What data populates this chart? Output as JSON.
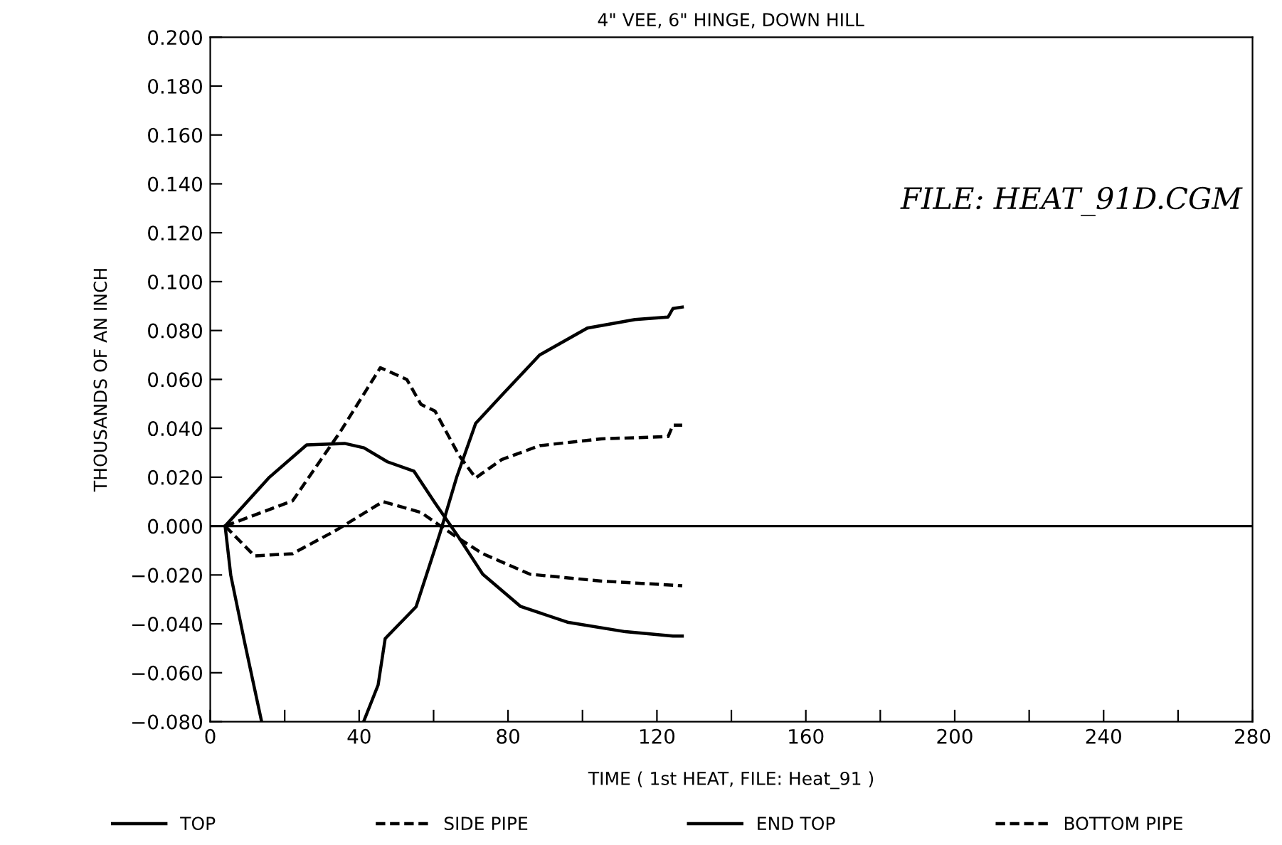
{
  "chart_data": {
    "type": "line",
    "title": "4\" VEE, 6\" HINGE, DOWN HILL",
    "xlabel": "TIME ( 1st HEAT, FILE: Heat_91 )",
    "ylabel": "THOUSANDS OF AN INCH",
    "annotations": [
      "FILE: HEAT_91D.CGM"
    ],
    "xlim": [
      0,
      280
    ],
    "xticks": [
      0,
      {
        "value": 20,
        "label": null
      },
      40,
      {
        "value": 60,
        "label": null
      },
      80,
      {
        "value": 100,
        "label": null
      },
      120,
      {
        "value": 140,
        "label": null
      },
      160,
      {
        "value": 180,
        "label": null
      },
      200,
      {
        "value": 220,
        "label": null
      },
      240,
      {
        "value": 260,
        "label": null
      },
      280
    ],
    "ylim": [
      -0.08,
      0.2
    ],
    "yticks": [
      {
        "value": -0.08,
        "label": "−0.080"
      },
      {
        "value": -0.06,
        "label": "−0.060"
      },
      {
        "value": -0.04,
        "label": "−0.040"
      },
      {
        "value": -0.02,
        "label": "−0.020"
      },
      {
        "value": 0,
        "label": "0.000"
      },
      {
        "value": 0.02,
        "label": "0.020"
      },
      {
        "value": 0.04,
        "label": "0.040"
      },
      {
        "value": 0.06,
        "label": "0.060"
      },
      {
        "value": 0.08,
        "label": "0.080"
      },
      {
        "value": 0.1,
        "label": "0.100"
      },
      {
        "value": 0.12,
        "label": "0.120"
      },
      {
        "value": 0.14,
        "label": "0.140"
      },
      {
        "value": 0.16,
        "label": "0.160"
      },
      {
        "value": 0.18,
        "label": "0.180"
      },
      {
        "value": 0.2,
        "label": "0.200"
      }
    ],
    "ref_lines": [
      {
        "axis": "y",
        "value": 0,
        "color": "#000000"
      }
    ],
    "grid": false,
    "legend": "bottom",
    "marker": "none",
    "series": [
      {
        "name": "TOP",
        "color": "#000000",
        "line_style": "solid",
        "x": [
          4,
          5.5,
          9.3,
          13.8,
          27,
          41.2,
          45.1,
          47.0,
          55.3,
          61.7,
          66.2,
          71.3,
          78.3,
          88.5,
          101.3,
          114.1,
          123,
          124.3,
          126.8
        ],
        "values": [
          0,
          -0.02,
          -0.048,
          -0.08,
          null,
          -0.08,
          -0.065,
          -0.046,
          -0.033,
          -0.003,
          0.02,
          0.042,
          0.0535,
          0.07,
          0.081,
          0.0845,
          0.0855,
          0.089,
          0.0896
        ]
      },
      {
        "name": "SIDE PIPE",
        "color": "#000000",
        "line_style": "dashed",
        "x": [
          4,
          22.1,
          34.9,
          45.7,
          52.8,
          56.6,
          60.4,
          66.8,
          71.3,
          78.3,
          88.5,
          105.1,
          123,
          124.3,
          126.8
        ],
        "values": [
          0,
          0.0103,
          0.0385,
          0.0648,
          0.06,
          0.0498,
          0.047,
          0.029,
          0.0197,
          0.0272,
          0.0329,
          0.0357,
          0.0366,
          0.0413,
          0.0413
        ]
      },
      {
        "name": "END TOP",
        "color": "#000000",
        "line_style": "solid",
        "x": [
          4,
          15.7,
          25.9,
          36.1,
          41.3,
          47.6,
          54.7,
          60.4,
          66.8,
          73.2,
          83.4,
          96.2,
          111.5,
          124.3,
          126.8
        ],
        "values": [
          0,
          0.0197,
          0.0332,
          0.0338,
          0.032,
          0.0263,
          0.0225,
          0.0094,
          -0.0047,
          -0.0197,
          -0.0329,
          -0.0394,
          -0.0432,
          -0.045,
          -0.045
        ]
      },
      {
        "name": "BOTTOM PIPE",
        "color": "#000000",
        "line_style": "dashed",
        "x": [
          4,
          11.9,
          22.1,
          33.6,
          46.4,
          56.6,
          65.5,
          73.2,
          85.9,
          105.1,
          126.8
        ],
        "values": [
          0,
          -0.0122,
          -0.0113,
          -0.0019,
          0.01,
          0.0056,
          -0.0038,
          -0.0113,
          -0.0197,
          -0.0225,
          -0.0244
        ]
      }
    ]
  }
}
